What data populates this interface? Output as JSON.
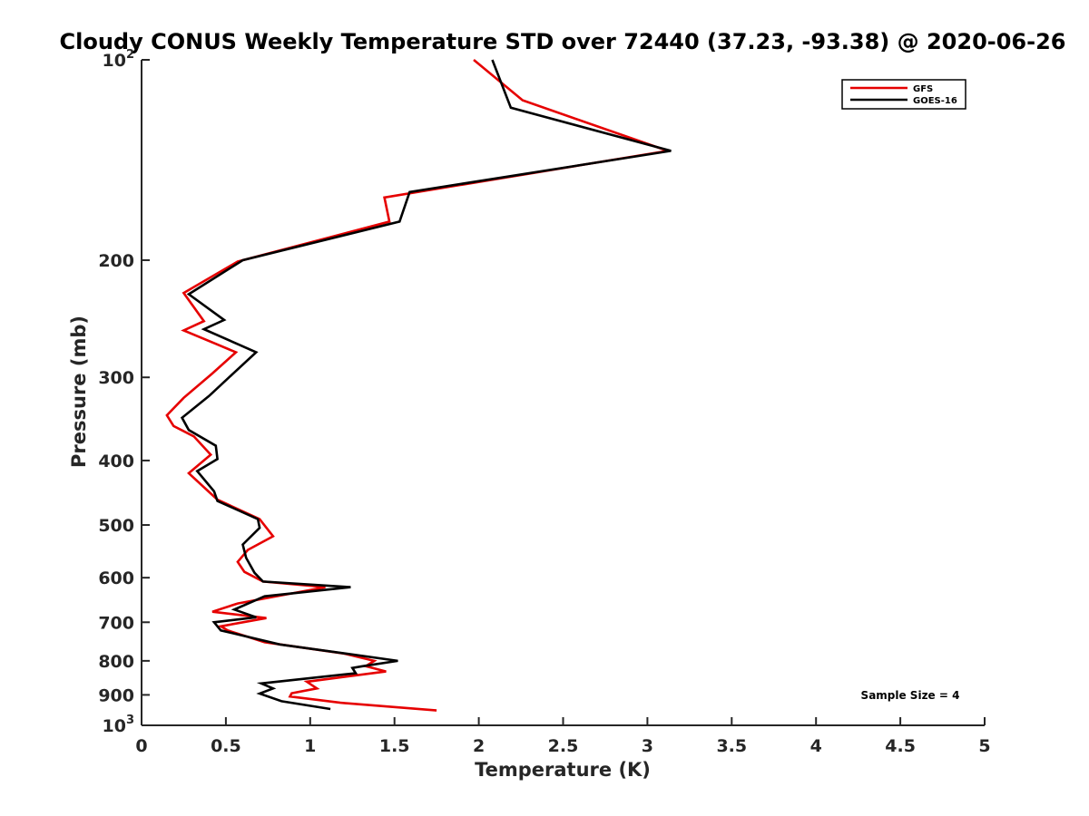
{
  "chart_data": {
    "type": "line",
    "title": "Cloudy CONUS Weekly Temperature STD over 72440 (37.23, -93.38) @ 2020-06-26",
    "xlabel": "Temperature (K)",
    "ylabel": "Pressure (mb)",
    "xlim": [
      0,
      5
    ],
    "ylim": [
      100,
      1000
    ],
    "y_scale": "log",
    "y_reversed": true,
    "grid": false,
    "legend_position": "top-right",
    "x_ticks": [
      "0",
      "0.5",
      "1",
      "1.5",
      "2",
      "2.5",
      "3",
      "3.5",
      "4",
      "4.5",
      "5"
    ],
    "y_ticks": [
      {
        "value": 100,
        "base": "10",
        "exp": "2"
      },
      {
        "value": 200,
        "label": "200"
      },
      {
        "value": 300,
        "label": "300"
      },
      {
        "value": 400,
        "label": "400"
      },
      {
        "value": 500,
        "label": "500"
      },
      {
        "value": 600,
        "label": "600"
      },
      {
        "value": 700,
        "label": "700"
      },
      {
        "value": 800,
        "label": "800"
      },
      {
        "value": 900,
        "label": "900"
      },
      {
        "value": 1000,
        "base": "10",
        "exp": "3"
      }
    ],
    "series": [
      {
        "name": "GFS",
        "color": "#e60000",
        "points": [
          [
            1.97,
            100
          ],
          [
            2.26,
            115
          ],
          [
            3.12,
            137
          ],
          [
            1.44,
            161
          ],
          [
            1.47,
            175
          ],
          [
            0.57,
            201
          ],
          [
            0.25,
            224
          ],
          [
            0.37,
            247
          ],
          [
            0.25,
            255
          ],
          [
            0.56,
            275
          ],
          [
            0.42,
            296
          ],
          [
            0.25,
            322
          ],
          [
            0.15,
            342
          ],
          [
            0.19,
            355
          ],
          [
            0.31,
            368
          ],
          [
            0.41,
            392
          ],
          [
            0.28,
            418
          ],
          [
            0.45,
            458
          ],
          [
            0.7,
            490
          ],
          [
            0.78,
            520
          ],
          [
            0.63,
            545
          ],
          [
            0.57,
            568
          ],
          [
            0.61,
            588
          ],
          [
            0.72,
            608
          ],
          [
            1.09,
            620
          ],
          [
            0.57,
            656
          ],
          [
            0.42,
            675
          ],
          [
            0.74,
            690
          ],
          [
            0.47,
            710
          ],
          [
            0.51,
            720
          ],
          [
            0.73,
            750
          ],
          [
            1.2,
            780
          ],
          [
            1.38,
            800
          ],
          [
            1.33,
            815
          ],
          [
            1.45,
            830
          ],
          [
            0.98,
            860
          ],
          [
            1.04,
            880
          ],
          [
            0.89,
            895
          ],
          [
            0.88,
            905
          ],
          [
            1.18,
            925
          ],
          [
            1.75,
            950
          ]
        ]
      },
      {
        "name": "GOES-16",
        "color": "#000000",
        "points": [
          [
            2.08,
            100
          ],
          [
            2.19,
            118
          ],
          [
            3.14,
            137
          ],
          [
            1.59,
            158
          ],
          [
            1.53,
            175
          ],
          [
            0.6,
            200
          ],
          [
            0.28,
            225
          ],
          [
            0.49,
            246
          ],
          [
            0.37,
            254
          ],
          [
            0.68,
            275
          ],
          [
            0.55,
            295
          ],
          [
            0.4,
            320
          ],
          [
            0.24,
            345
          ],
          [
            0.28,
            360
          ],
          [
            0.44,
            380
          ],
          [
            0.45,
            398
          ],
          [
            0.33,
            415
          ],
          [
            0.43,
            445
          ],
          [
            0.45,
            460
          ],
          [
            0.69,
            490
          ],
          [
            0.7,
            505
          ],
          [
            0.6,
            535
          ],
          [
            0.62,
            560
          ],
          [
            0.67,
            590
          ],
          [
            0.72,
            608
          ],
          [
            1.24,
            620
          ],
          [
            0.73,
            640
          ],
          [
            0.55,
            670
          ],
          [
            0.68,
            688
          ],
          [
            0.43,
            700
          ],
          [
            0.47,
            720
          ],
          [
            0.82,
            756
          ],
          [
            1.21,
            780
          ],
          [
            1.52,
            800
          ],
          [
            1.31,
            815
          ],
          [
            1.25,
            820
          ],
          [
            1.27,
            835
          ],
          [
            0.71,
            865
          ],
          [
            0.78,
            880
          ],
          [
            0.7,
            896
          ],
          [
            0.83,
            920
          ],
          [
            1.12,
            945
          ]
        ]
      }
    ],
    "annotations": [
      {
        "text": "Sample Size = 4"
      }
    ]
  }
}
